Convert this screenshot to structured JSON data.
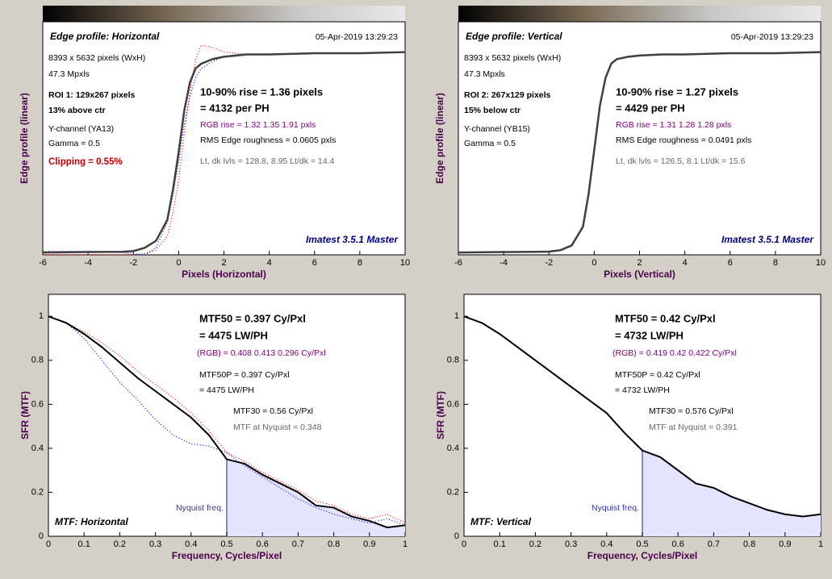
{
  "chart_data": [
    {
      "type": "line",
      "x_label": "Pixels (Horizontal)",
      "y_label": "Edge profile (linear)",
      "xlim": [
        -6,
        10
      ],
      "xticks": [
        -6,
        -4,
        -2,
        0,
        2,
        4,
        6,
        8,
        10
      ],
      "ylim": [
        0,
        1
      ],
      "x": [
        -6,
        -4,
        -2.5,
        -2,
        -1.5,
        -1,
        -0.5,
        -0.25,
        0,
        0.25,
        0.5,
        0.75,
        1,
        1.5,
        2,
        3,
        4,
        6,
        8,
        10
      ],
      "series": [
        {
          "name": "R",
          "color": "#ff0000",
          "style": "dotted",
          "values": [
            0,
            0,
            0,
            0,
            0.005,
            0.02,
            0.08,
            0.18,
            0.32,
            0.52,
            0.7,
            0.84,
            0.9,
            0.89,
            0.87,
            0.86,
            0.86,
            0.865,
            0.865,
            0.87
          ]
        },
        {
          "name": "B",
          "color": "#0000ff",
          "style": "dotted",
          "values": [
            0.015,
            0.015,
            0.01,
            0.005,
            0,
            0.03,
            0.14,
            0.26,
            0.4,
            0.56,
            0.68,
            0.76,
            0.8,
            0.83,
            0.85,
            0.86,
            0.86,
            0.865,
            0.865,
            0.87
          ]
        },
        {
          "name": "Y",
          "color": "#404040",
          "style": "solid",
          "values": [
            0.01,
            0.012,
            0.013,
            0.016,
            0.03,
            0.06,
            0.15,
            0.28,
            0.44,
            0.62,
            0.74,
            0.8,
            0.82,
            0.84,
            0.85,
            0.86,
            0.86,
            0.865,
            0.865,
            0.87
          ]
        }
      ],
      "annotations": [
        {
          "text": "Edge profile: Horizontal",
          "style": "title"
        },
        {
          "text": "05-Apr-2019 13:29:23",
          "style": "text"
        },
        {
          "text": "8393 x 5632 pixels (WxH)",
          "style": "text"
        },
        {
          "text": "47.3 Mpxls",
          "style": "text"
        },
        {
          "text": "ROI 1:  129x267 pixels",
          "style": "bold"
        },
        {
          "text": "13% above ctr",
          "style": "bold"
        },
        {
          "text": "Y-channel  (YA13)",
          "style": "text"
        },
        {
          "text": "Gamma = 0.5",
          "style": "text"
        },
        {
          "text": "Clipping =   0.55%",
          "style": "red"
        },
        {
          "text": "10-90% rise = 1.36 pixels",
          "style": "big"
        },
        {
          "text": "= 4132 per PH",
          "style": "big"
        },
        {
          "text": "RGB rise = 1.32  1.35  1.91 pxls",
          "style": "purple"
        },
        {
          "text": "RMS Edge roughness = 0.0605 pxls",
          "style": "text"
        },
        {
          "text": "Lt, dk lvls = 128.8, 8.95   Lt/dk = 14.4",
          "style": "gray"
        },
        {
          "text": "Imatest 3.5.1 Master",
          "style": "brand"
        }
      ]
    },
    {
      "type": "line",
      "x_label": "Pixels (Vertical)",
      "y_label": "Edge profile (linear)",
      "xlim": [
        -6,
        10
      ],
      "xticks": [
        -6,
        -4,
        -2,
        0,
        2,
        4,
        6,
        8,
        10
      ],
      "ylim": [
        0,
        1
      ],
      "x": [
        -6,
        -4,
        -2.5,
        -2,
        -1.5,
        -1,
        -0.5,
        -0.25,
        0,
        0.25,
        0.5,
        0.75,
        1,
        1.5,
        2,
        3,
        4,
        6,
        8,
        10
      ],
      "series": [
        {
          "name": "Y",
          "color": "#404040",
          "style": "solid",
          "values": [
            0.01,
            0.012,
            0.013,
            0.014,
            0.02,
            0.04,
            0.12,
            0.26,
            0.45,
            0.64,
            0.76,
            0.82,
            0.84,
            0.85,
            0.855,
            0.86,
            0.86,
            0.865,
            0.865,
            0.87
          ]
        }
      ],
      "annotations": [
        {
          "text": "Edge profile: Vertical",
          "style": "title"
        },
        {
          "text": "05-Apr-2019 13:29:23",
          "style": "text"
        },
        {
          "text": "8393 x 5632 pixels (WxH)",
          "style": "text"
        },
        {
          "text": "47.3 Mpxls",
          "style": "text"
        },
        {
          "text": "ROI 2:  267x129 pixels",
          "style": "bold"
        },
        {
          "text": "15% below ctr",
          "style": "bold"
        },
        {
          "text": "Y-channel  (YB15)",
          "style": "text"
        },
        {
          "text": "Gamma = 0.5",
          "style": "text"
        },
        {
          "text": "10-90% rise = 1.27 pixels",
          "style": "big"
        },
        {
          "text": "= 4429 per PH",
          "style": "big"
        },
        {
          "text": "RGB rise = 1.31  1.28  1.28 pxls",
          "style": "purple"
        },
        {
          "text": "RMS Edge roughness = 0.0491 pxls",
          "style": "text"
        },
        {
          "text": "Lt, dk lvls = 126.5, 8.1   Lt/dk = 15.6",
          "style": "gray"
        },
        {
          "text": "Imatest 3.5.1 Master",
          "style": "brand"
        }
      ]
    },
    {
      "type": "line",
      "x_label": "Frequency, Cycles/Pixel",
      "y_label": "SFR (MTF)",
      "xlim": [
        0,
        1
      ],
      "xticks": [
        0,
        0.1,
        0.2,
        0.3,
        0.4,
        0.5,
        0.6,
        0.7,
        0.8,
        0.9,
        1
      ],
      "ylim": [
        0,
        1.1
      ],
      "yticks": [
        0,
        0.2,
        0.4,
        0.6,
        0.8,
        1
      ],
      "nyquist": 0.5,
      "x": [
        0,
        0.05,
        0.1,
        0.15,
        0.2,
        0.25,
        0.3,
        0.35,
        0.4,
        0.45,
        0.5,
        0.55,
        0.6,
        0.65,
        0.7,
        0.75,
        0.8,
        0.85,
        0.9,
        0.95,
        1
      ],
      "series": [
        {
          "name": "R",
          "color": "#ff0000",
          "style": "dotted",
          "values": [
            1,
            0.97,
            0.93,
            0.88,
            0.82,
            0.75,
            0.69,
            0.63,
            0.56,
            0.48,
            0.38,
            0.34,
            0.29,
            0.25,
            0.21,
            0.16,
            0.14,
            0.1,
            0.08,
            0.1,
            0.06
          ]
        },
        {
          "name": "B",
          "color": "#0000ff",
          "style": "dotted",
          "values": [
            1,
            0.97,
            0.9,
            0.8,
            0.7,
            0.62,
            0.53,
            0.46,
            0.42,
            0.41,
            0.38,
            0.32,
            0.27,
            0.22,
            0.17,
            0.13,
            0.1,
            0.08,
            0.06,
            0.08,
            0.05
          ]
        },
        {
          "name": "Y",
          "color": "#000000",
          "style": "solid",
          "values": [
            1,
            0.97,
            0.92,
            0.86,
            0.79,
            0.72,
            0.66,
            0.6,
            0.54,
            0.46,
            0.35,
            0.33,
            0.28,
            0.24,
            0.2,
            0.14,
            0.13,
            0.09,
            0.07,
            0.04,
            0.05
          ]
        }
      ],
      "annotations": [
        {
          "text": "MTF50 = 0.397 Cy/Pxl",
          "style": "big"
        },
        {
          "text": "= 4475 LW/PH",
          "style": "big"
        },
        {
          "text": "(RGB) = 0.408  0.413  0.296 Cy/Pxl",
          "style": "purple"
        },
        {
          "text": "MTF50P = 0.397 Cy/Pxl",
          "style": "text"
        },
        {
          "text": "= 4475 LW/PH",
          "style": "text"
        },
        {
          "text": "MTF30 = 0.56 Cy/Pxl",
          "style": "text"
        },
        {
          "text": "MTF at Nyquist = 0.348",
          "style": "gray"
        },
        {
          "text": "Nyquist freq.",
          "style": "navy"
        },
        {
          "text": "MTF: Horizontal",
          "style": "title"
        }
      ]
    },
    {
      "type": "line",
      "x_label": "Frequency, Cycles/Pixel",
      "y_label": "SFR (MTF)",
      "xlim": [
        0,
        1
      ],
      "xticks": [
        0,
        0.1,
        0.2,
        0.3,
        0.4,
        0.5,
        0.6,
        0.7,
        0.8,
        0.9,
        1
      ],
      "ylim": [
        0,
        1.1
      ],
      "yticks": [
        0,
        0.2,
        0.4,
        0.6,
        0.8,
        1
      ],
      "nyquist": 0.5,
      "x": [
        0,
        0.05,
        0.1,
        0.15,
        0.2,
        0.25,
        0.3,
        0.35,
        0.4,
        0.45,
        0.5,
        0.55,
        0.6,
        0.65,
        0.7,
        0.75,
        0.8,
        0.85,
        0.9,
        0.95,
        1
      ],
      "series": [
        {
          "name": "Y",
          "color": "#000000",
          "style": "solid",
          "values": [
            1,
            0.97,
            0.92,
            0.86,
            0.8,
            0.74,
            0.68,
            0.62,
            0.56,
            0.47,
            0.39,
            0.36,
            0.3,
            0.24,
            0.22,
            0.18,
            0.15,
            0.12,
            0.1,
            0.09,
            0.1
          ]
        }
      ],
      "annotations": [
        {
          "text": "MTF50 = 0.42 Cy/Pxl",
          "style": "big"
        },
        {
          "text": "= 4732 LW/PH",
          "style": "big"
        },
        {
          "text": "(RGB) = 0.419  0.42  0.422 Cy/Pxl",
          "style": "purple"
        },
        {
          "text": "MTF50P = 0.42 Cy/Pxl",
          "style": "text"
        },
        {
          "text": "= 4732 LW/PH",
          "style": "text"
        },
        {
          "text": "MTF30 = 0.576 Cy/Pxl",
          "style": "text"
        },
        {
          "text": "MTF at Nyquist = 0.391",
          "style": "gray"
        },
        {
          "text": "Nyquist freq.",
          "style": "navy"
        },
        {
          "text": "MTF: Vertical",
          "style": "title"
        }
      ]
    }
  ]
}
